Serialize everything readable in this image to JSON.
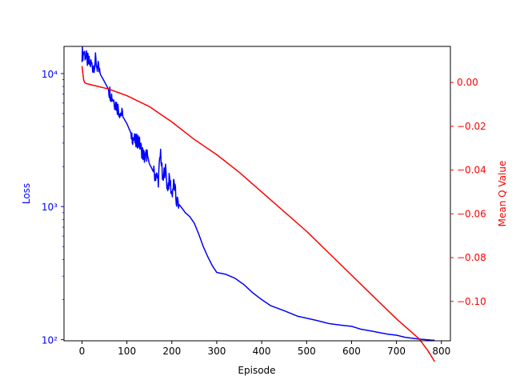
{
  "chart_data": {
    "type": "line",
    "title": "",
    "xlabel": "Episode",
    "ylabel_left": "Loss",
    "ylabel_right": "Mean Q Value",
    "xlim": [
      -40,
      820
    ],
    "y_left_scale": "log",
    "y_left_lim": [
      98,
      16000
    ],
    "y_right_lim": [
      -0.118,
      0.0165
    ],
    "grid": false,
    "legend": "none",
    "x_ticks": [
      0,
      100,
      200,
      300,
      400,
      500,
      600,
      700,
      800
    ],
    "x_tick_labels": [
      "0",
      "100",
      "200",
      "300",
      "400",
      "500",
      "600",
      "700",
      "800"
    ],
    "y_left_ticks": [
      100,
      1000,
      10000
    ],
    "y_left_tick_labels": [
      "10²",
      "10³",
      "10⁴"
    ],
    "y_right_ticks": [
      0.0,
      -0.02,
      -0.04,
      -0.06,
      -0.08,
      -0.1
    ],
    "y_right_tick_labels": [
      "0.00",
      "−0.02",
      "−0.04",
      "−0.06",
      "−0.08",
      "−0.10"
    ],
    "colors": {
      "loss": "#0000ff",
      "q": "#ff0000",
      "axis": "#000000"
    },
    "series": [
      {
        "axis": "left",
        "color": "#0000ff",
        "x": [
          0,
          5,
          10,
          15,
          20,
          25,
          30,
          35,
          40,
          50,
          60,
          70,
          80,
          90,
          100,
          110,
          120,
          125,
          130,
          140,
          145,
          150,
          160,
          165,
          170,
          175,
          180,
          185,
          190,
          195,
          200,
          205,
          210,
          220,
          230,
          240,
          250,
          260,
          270,
          280,
          290,
          300,
          320,
          340,
          360,
          380,
          400,
          420,
          450,
          480,
          500,
          520,
          550,
          580,
          600,
          620,
          650,
          680,
          700,
          720,
          750,
          780,
          785
        ],
        "y": [
          14000,
          14500,
          13000,
          12000,
          11800,
          11200,
          12500,
          11000,
          10000,
          8700,
          7500,
          6400,
          5500,
          4800,
          4200,
          3500,
          3000,
          3200,
          2800,
          2300,
          2500,
          2100,
          1800,
          1700,
          1600,
          2600,
          1500,
          2000,
          1400,
          1600,
          1250,
          1500,
          1100,
          1000,
          900,
          840,
          750,
          620,
          500,
          420,
          360,
          320,
          310,
          290,
          260,
          225,
          200,
          180,
          165,
          150,
          145,
          140,
          132,
          128,
          126,
          120,
          115,
          110,
          108,
          104,
          101,
          99,
          99
        ],
        "noisy_segments": [
          [
            0,
            40
          ],
          [
            60,
            90
          ],
          [
            110,
            145
          ],
          [
            160,
            215
          ]
        ]
      },
      {
        "axis": "right",
        "color": "#ff0000",
        "x": [
          0,
          2,
          4,
          6,
          10,
          20,
          40,
          60,
          80,
          100,
          150,
          200,
          250,
          300,
          350,
          400,
          450,
          500,
          550,
          600,
          650,
          700,
          750,
          770,
          785
        ],
        "y": [
          0.0075,
          0.004,
          0.001,
          0.0,
          -0.0005,
          -0.001,
          -0.002,
          -0.003,
          -0.0045,
          -0.006,
          -0.011,
          -0.018,
          -0.026,
          -0.033,
          -0.041,
          -0.05,
          -0.059,
          -0.068,
          -0.078,
          -0.088,
          -0.098,
          -0.108,
          -0.117,
          -0.1225,
          -0.1275
        ]
      }
    ]
  }
}
